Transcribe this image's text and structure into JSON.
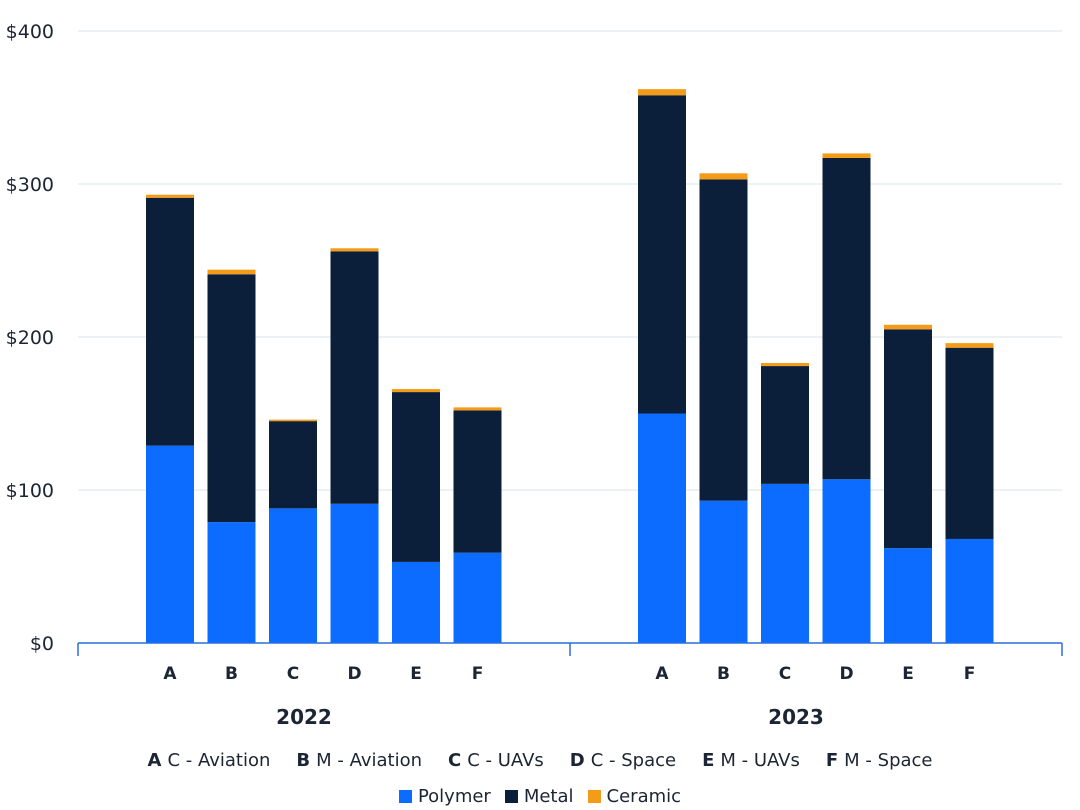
{
  "chart_data": {
    "type": "bar",
    "stacked": true,
    "title": "",
    "xlabel": "",
    "ylabel": "",
    "ylim": [
      0,
      400
    ],
    "yticks": [
      0,
      100,
      200,
      300,
      400
    ],
    "ytick_labels": [
      "$0",
      "$100",
      "$200",
      "$300",
      "$400"
    ],
    "grid": true,
    "groups": [
      {
        "name": "2022",
        "categories": [
          "A",
          "B",
          "C",
          "D",
          "E",
          "F"
        ],
        "series": [
          {
            "name": "Polymer",
            "color": "#0b6cff",
            "values": [
              129,
              79,
              88,
              91,
              53,
              59
            ]
          },
          {
            "name": "Metal",
            "color": "#0b1f3a",
            "values": [
              162,
              162,
              57,
              165,
              111,
              93
            ]
          },
          {
            "name": "Ceramic",
            "color": "#f59b1a",
            "values": [
              2,
              3,
              1,
              2,
              2,
              2
            ]
          }
        ]
      },
      {
        "name": "2023",
        "categories": [
          "A",
          "B",
          "C",
          "D",
          "E",
          "F"
        ],
        "series": [
          {
            "name": "Polymer",
            "color": "#0b6cff",
            "values": [
              150,
              93,
              104,
              107,
              62,
              68
            ]
          },
          {
            "name": "Metal",
            "color": "#0b1f3a",
            "values": [
              208,
              210,
              77,
              210,
              143,
              125
            ]
          },
          {
            "name": "Ceramic",
            "color": "#f59b1a",
            "values": [
              4,
              4,
              2,
              3,
              3,
              3
            ]
          }
        ]
      }
    ],
    "legend_placement": "bottom",
    "category_legend": [
      {
        "key": "A",
        "label": "C - Aviation"
      },
      {
        "key": "B",
        "label": "M - Aviation"
      },
      {
        "key": "C",
        "label": "C - UAVs"
      },
      {
        "key": "D",
        "label": "C - Space"
      },
      {
        "key": "E",
        "label": "M - UAVs"
      },
      {
        "key": "F",
        "label": "M - Space"
      }
    ],
    "series_legend": [
      {
        "name": "Polymer",
        "color": "#0b6cff"
      },
      {
        "name": "Metal",
        "color": "#0b1f3a"
      },
      {
        "name": "Ceramic",
        "color": "#f59b1a"
      }
    ]
  }
}
